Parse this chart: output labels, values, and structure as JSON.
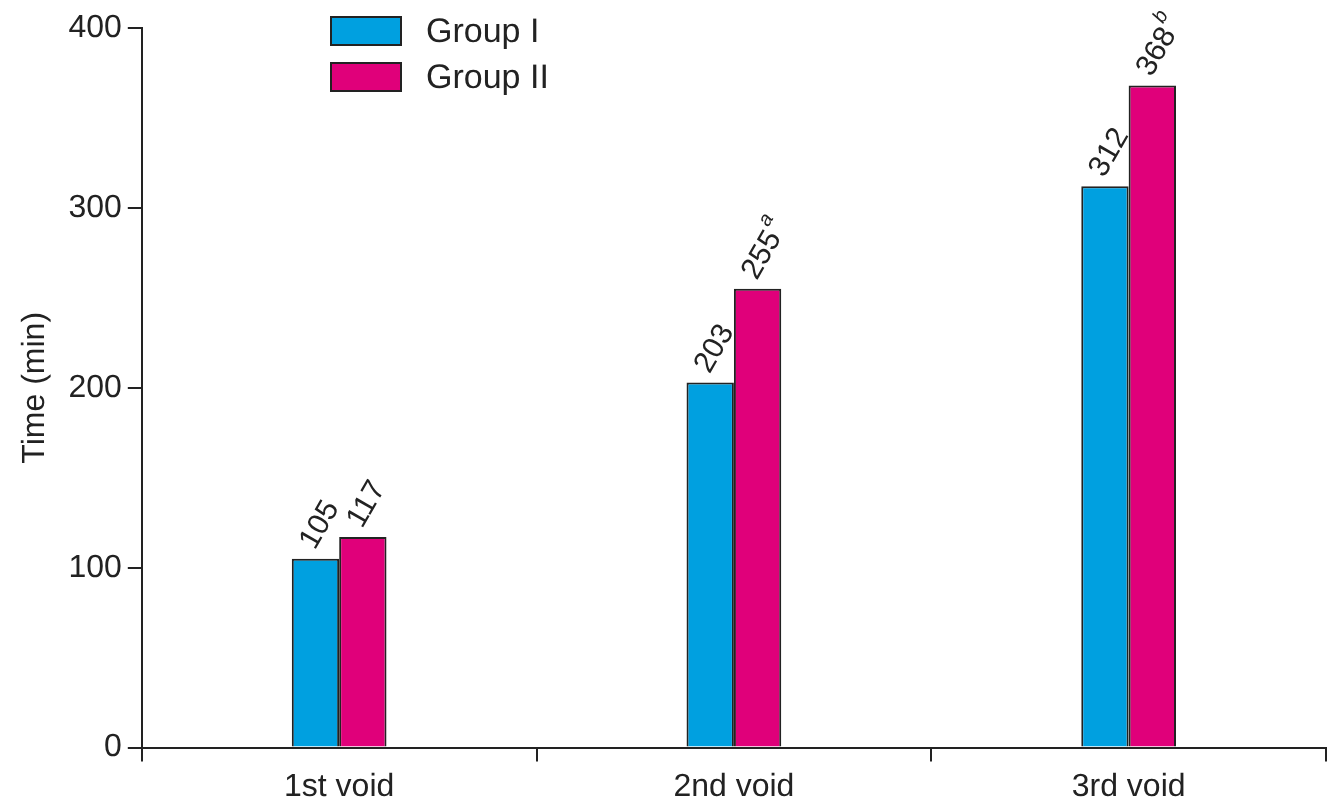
{
  "chart_data": {
    "type": "bar",
    "ylabel": "Time (min)",
    "categories": [
      "1st void",
      "2nd void",
      "3rd void"
    ],
    "series": [
      {
        "name": "Group I",
        "color": "#00a0e0",
        "values": [
          105,
          203,
          312
        ],
        "value_labels": [
          "105",
          "203",
          "312"
        ]
      },
      {
        "name": "Group II",
        "color": "#e0007a",
        "values": [
          117,
          255,
          368
        ],
        "value_labels": [
          "117",
          "255$^{a}$",
          "368$^{b}$"
        ]
      }
    ],
    "ylim": [
      0,
      400
    ],
    "yticks": [
      0,
      100,
      200,
      300,
      400
    ],
    "grid": false,
    "legend": "top left"
  }
}
